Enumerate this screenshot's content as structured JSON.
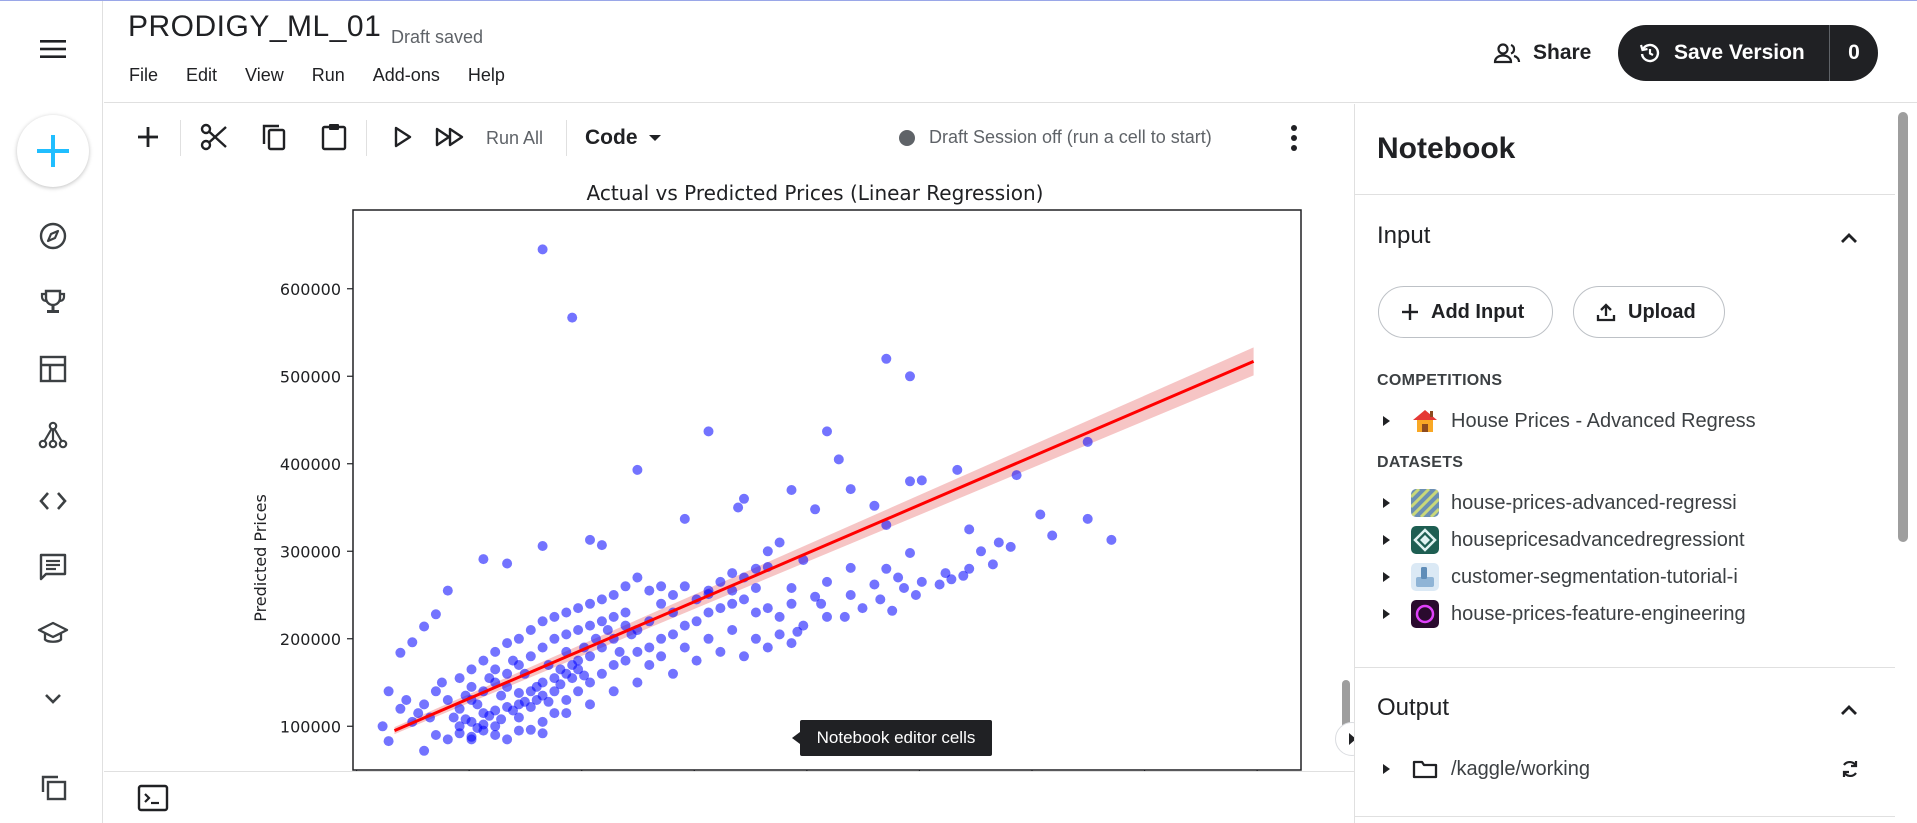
{
  "header": {
    "title": "PRODIGY_ML_01",
    "draft_status": "Draft saved",
    "menu": [
      "File",
      "Edit",
      "View",
      "Run",
      "Add-ons",
      "Help"
    ],
    "share_label": "Share",
    "save_version_label": "Save Version",
    "save_version_count": "0"
  },
  "toolbar": {
    "run_all_label": "Run All",
    "cell_type": "Code",
    "session_status": "Draft Session off (run a cell to start)"
  },
  "tooltip": "Notebook editor cells",
  "panel": {
    "title": "Notebook",
    "input": {
      "heading": "Input",
      "add_input_label": "Add Input",
      "upload_label": "Upload",
      "competitions_label": "COMPETITIONS",
      "competitions": [
        {
          "name": "House Prices - Advanced Regress",
          "icon": "house-icon"
        }
      ],
      "datasets_label": "DATASETS",
      "datasets": [
        {
          "name": "house-prices-advanced-regressi",
          "color": "#6b8fb3"
        },
        {
          "name": "housepricesadvancedregressiont",
          "color": "#1e5e52"
        },
        {
          "name": "customer-segmentation-tutorial-i",
          "color": "#8fb4d6"
        },
        {
          "name": "house-prices-feature-engineering",
          "color": "#2a0a2e"
        }
      ]
    },
    "output": {
      "heading": "Output",
      "folder": "/kaggle/working"
    }
  },
  "chart_data": {
    "type": "scatter",
    "title": "Actual vs Predicted Prices (Linear Regression)",
    "xlabel": "",
    "ylabel": "Predicted Prices",
    "xlim": [
      0,
      800000
    ],
    "ylim": [
      50000,
      690000
    ],
    "y_ticks": [
      100000,
      200000,
      300000,
      400000,
      500000,
      600000
    ],
    "point_color": "#0000ff",
    "regression_line": {
      "color": "#ff0000",
      "from": [
        35000,
        95000
      ],
      "to": [
        760000,
        517000
      ]
    },
    "confidence_band_color": "#f4b6b6",
    "series": [
      {
        "points": [
          [
            160000,
            645000
          ],
          [
            185000,
            567000
          ],
          [
            450000,
            520000
          ],
          [
            470000,
            500000
          ],
          [
            400000,
            437000
          ],
          [
            300000,
            437000
          ],
          [
            240000,
            393000
          ],
          [
            410000,
            405000
          ],
          [
            620000,
            425000
          ],
          [
            560000,
            387000
          ],
          [
            510000,
            393000
          ],
          [
            480000,
            381000
          ],
          [
            470000,
            380000
          ],
          [
            420000,
            371000
          ],
          [
            370000,
            370000
          ],
          [
            330000,
            360000
          ],
          [
            325000,
            350000
          ],
          [
            390000,
            348000
          ],
          [
            440000,
            352000
          ],
          [
            580000,
            342000
          ],
          [
            590000,
            318000
          ],
          [
            640000,
            313000
          ],
          [
            620000,
            337000
          ],
          [
            520000,
            325000
          ],
          [
            450000,
            330000
          ],
          [
            280000,
            337000
          ],
          [
            200000,
            313000
          ],
          [
            210000,
            307000
          ],
          [
            470000,
            298000
          ],
          [
            380000,
            290000
          ],
          [
            420000,
            281000
          ],
          [
            450000,
            280000
          ],
          [
            400000,
            265000
          ],
          [
            370000,
            258000
          ],
          [
            340000,
            258000
          ],
          [
            390000,
            248000
          ],
          [
            300000,
            251000
          ],
          [
            320000,
            275000
          ],
          [
            350000,
            282000
          ],
          [
            160000,
            306000
          ],
          [
            130000,
            286000
          ],
          [
            110000,
            291000
          ],
          [
            80000,
            255000
          ],
          [
            70000,
            228000
          ],
          [
            60000,
            214000
          ],
          [
            50000,
            196000
          ],
          [
            40000,
            184000
          ],
          [
            30000,
            140000
          ],
          [
            25000,
            100000
          ],
          [
            30000,
            83000
          ],
          [
            40000,
            120000
          ],
          [
            50000,
            105000
          ],
          [
            60000,
            72000
          ],
          [
            70000,
            90000
          ],
          [
            80000,
            85000
          ],
          [
            90000,
            92000
          ],
          [
            100000,
            88000
          ],
          [
            110000,
            95000
          ],
          [
            120000,
            100000
          ],
          [
            130000,
            85000
          ],
          [
            140000,
            110000
          ],
          [
            150000,
            96000
          ],
          [
            160000,
            92000
          ],
          [
            170000,
            115000
          ],
          [
            180000,
            130000
          ],
          [
            190000,
            140000
          ],
          [
            200000,
            150000
          ],
          [
            210000,
            160000
          ],
          [
            220000,
            170000
          ],
          [
            230000,
            175000
          ],
          [
            240000,
            185000
          ],
          [
            250000,
            190000
          ],
          [
            260000,
            200000
          ],
          [
            270000,
            205000
          ],
          [
            280000,
            215000
          ],
          [
            290000,
            220000
          ],
          [
            300000,
            230000
          ],
          [
            310000,
            235000
          ],
          [
            320000,
            240000
          ],
          [
            330000,
            245000
          ],
          [
            340000,
            230000
          ],
          [
            350000,
            235000
          ],
          [
            360000,
            225000
          ],
          [
            370000,
            240000
          ],
          [
            100000,
            130000
          ],
          [
            110000,
            140000
          ],
          [
            120000,
            150000
          ],
          [
            130000,
            160000
          ],
          [
            140000,
            170000
          ],
          [
            150000,
            180000
          ],
          [
            160000,
            190000
          ],
          [
            170000,
            200000
          ],
          [
            180000,
            205000
          ],
          [
            190000,
            210000
          ],
          [
            200000,
            215000
          ],
          [
            210000,
            220000
          ],
          [
            220000,
            225000
          ],
          [
            230000,
            230000
          ],
          [
            240000,
            210000
          ],
          [
            250000,
            220000
          ],
          [
            260000,
            240000
          ],
          [
            270000,
            230000
          ],
          [
            90000,
            120000
          ],
          [
            95000,
            135000
          ],
          [
            100000,
            145000
          ],
          [
            105000,
            125000
          ],
          [
            110000,
            115000
          ],
          [
            115000,
            155000
          ],
          [
            120000,
            165000
          ],
          [
            125000,
            135000
          ],
          [
            130000,
            145000
          ],
          [
            135000,
            175000
          ],
          [
            140000,
            125000
          ],
          [
            145000,
            160000
          ],
          [
            150000,
            140000
          ],
          [
            155000,
            130000
          ],
          [
            160000,
            150000
          ],
          [
            165000,
            170000
          ],
          [
            170000,
            140000
          ],
          [
            175000,
            165000
          ],
          [
            180000,
            185000
          ],
          [
            185000,
            155000
          ],
          [
            190000,
            175000
          ],
          [
            195000,
            190000
          ],
          [
            200000,
            180000
          ],
          [
            205000,
            200000
          ],
          [
            210000,
            190000
          ],
          [
            215000,
            210000
          ],
          [
            220000,
            200000
          ],
          [
            225000,
            185000
          ],
          [
            230000,
            215000
          ],
          [
            235000,
            205000
          ],
          [
            80000,
            130000
          ],
          [
            85000,
            110000
          ],
          [
            90000,
            100000
          ],
          [
            95000,
            108000
          ],
          [
            100000,
            105000
          ],
          [
            105000,
            98000
          ],
          [
            110000,
            102000
          ],
          [
            115000,
            112000
          ],
          [
            120000,
            118000
          ],
          [
            125000,
            108000
          ],
          [
            130000,
            122000
          ],
          [
            135000,
            118000
          ],
          [
            140000,
            138000
          ],
          [
            145000,
            128000
          ],
          [
            150000,
            122000
          ],
          [
            155000,
            145000
          ],
          [
            160000,
            135000
          ],
          [
            165000,
            128000
          ],
          [
            170000,
            155000
          ],
          [
            175000,
            148000
          ],
          [
            180000,
            160000
          ],
          [
            185000,
            170000
          ],
          [
            190000,
            165000
          ],
          [
            195000,
            158000
          ],
          [
            60000,
            125000
          ],
          [
            65000,
            110000
          ],
          [
            70000,
            140000
          ],
          [
            75000,
            150000
          ],
          [
            55000,
            115000
          ],
          [
            45000,
            130000
          ],
          [
            250000,
            255000
          ],
          [
            260000,
            260000
          ],
          [
            270000,
            250000
          ],
          [
            280000,
            260000
          ],
          [
            290000,
            245000
          ],
          [
            300000,
            255000
          ],
          [
            310000,
            265000
          ],
          [
            320000,
            255000
          ],
          [
            330000,
            270000
          ],
          [
            340000,
            280000
          ],
          [
            350000,
            300000
          ],
          [
            360000,
            310000
          ],
          [
            230000,
            260000
          ],
          [
            240000,
            270000
          ],
          [
            220000,
            250000
          ],
          [
            210000,
            245000
          ],
          [
            200000,
            240000
          ],
          [
            190000,
            235000
          ],
          [
            180000,
            230000
          ],
          [
            170000,
            225000
          ],
          [
            160000,
            220000
          ],
          [
            150000,
            210000
          ],
          [
            140000,
            200000
          ],
          [
            130000,
            195000
          ],
          [
            120000,
            185000
          ],
          [
            110000,
            175000
          ],
          [
            100000,
            165000
          ],
          [
            90000,
            155000
          ],
          [
            280000,
            190000
          ],
          [
            300000,
            200000
          ],
          [
            320000,
            210000
          ],
          [
            340000,
            200000
          ],
          [
            360000,
            205000
          ],
          [
            380000,
            215000
          ],
          [
            400000,
            225000
          ],
          [
            420000,
            250000
          ],
          [
            440000,
            262000
          ],
          [
            460000,
            270000
          ],
          [
            480000,
            265000
          ],
          [
            500000,
            275000
          ],
          [
            520000,
            280000
          ],
          [
            540000,
            285000
          ],
          [
            290000,
            175000
          ],
          [
            310000,
            185000
          ],
          [
            330000,
            180000
          ],
          [
            350000,
            190000
          ],
          [
            370000,
            195000
          ],
          [
            250000,
            170000
          ],
          [
            260000,
            180000
          ],
          [
            270000,
            160000
          ],
          [
            240000,
            150000
          ],
          [
            220000,
            140000
          ],
          [
            200000,
            125000
          ],
          [
            180000,
            115000
          ],
          [
            160000,
            105000
          ],
          [
            140000,
            95000
          ],
          [
            120000,
            90000
          ],
          [
            100000,
            85000
          ],
          [
            375000,
            208000
          ],
          [
            395000,
            240000
          ],
          [
            415000,
            225000
          ],
          [
            430000,
            235000
          ],
          [
            445000,
            245000
          ],
          [
            455000,
            232000
          ],
          [
            465000,
            258000
          ],
          [
            475000,
            250000
          ],
          [
            495000,
            262000
          ],
          [
            505000,
            268000
          ],
          [
            515000,
            272000
          ],
          [
            530000,
            300000
          ],
          [
            545000,
            310000
          ],
          [
            555000,
            305000
          ]
        ]
      }
    ],
    "legend": "none",
    "grid": false
  }
}
